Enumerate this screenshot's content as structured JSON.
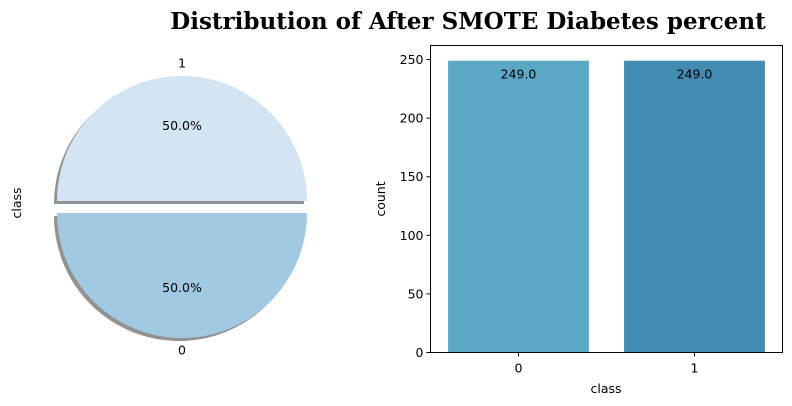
{
  "title": "Distribution of After SMOTE Diabetes percent",
  "chart_data": [
    {
      "type": "pie",
      "ylabel": "class",
      "labels": [
        "1",
        "0"
      ],
      "values": [
        249,
        249
      ],
      "pct_labels": [
        "50.0%",
        "50.0%"
      ],
      "colors": [
        "#d3e4f3",
        "#a1cae2"
      ],
      "explode": true,
      "shadow": true
    },
    {
      "type": "bar",
      "xlabel": "class",
      "ylabel": "count",
      "categories": [
        "0",
        "1"
      ],
      "values": [
        249.0,
        249.0
      ],
      "value_labels": [
        "249.0",
        "249.0"
      ],
      "colors": [
        "#5aa8c5",
        "#428cb1"
      ],
      "ylim": [
        0,
        262
      ],
      "yticks": [
        0,
        50,
        100,
        150,
        200,
        250
      ]
    }
  ]
}
